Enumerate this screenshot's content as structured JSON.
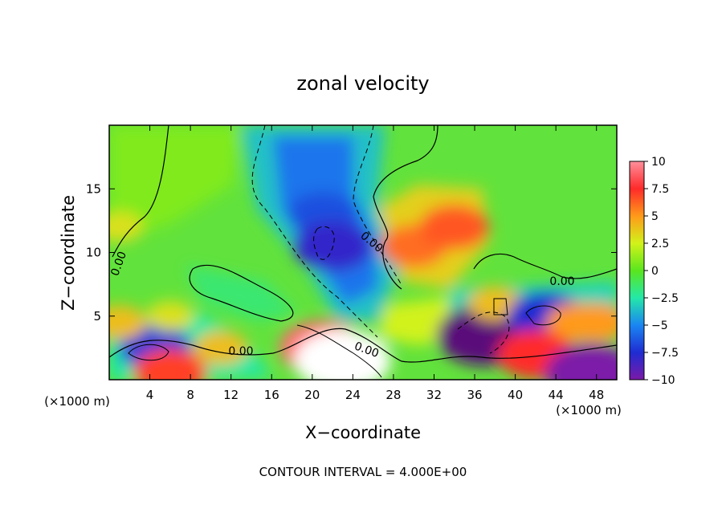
{
  "chart_data": {
    "type": "heatmap",
    "title": "zonal velocity",
    "xlabel": "X−coordinate",
    "ylabel": "Z−coordinate",
    "x_unit": "(×1000 m)",
    "x_unit_right": "(×1000 m)",
    "footer": "CONTOUR INTERVAL = 4.000E+00",
    "xlim": [
      0,
      50
    ],
    "ylim": [
      0,
      20
    ],
    "x_ticks": [
      4,
      8,
      12,
      16,
      20,
      24,
      28,
      32,
      36,
      40,
      44,
      48
    ],
    "x_tick_labels": [
      "4",
      "8",
      "12",
      "16",
      "20",
      "24",
      "28",
      "32",
      "36",
      "40",
      "44",
      "48"
    ],
    "y_ticks": [
      5,
      10,
      15
    ],
    "y_tick_labels": [
      "5",
      "10",
      "15"
    ],
    "contour_labels": [
      "0.00",
      "0.00",
      "0.00",
      "0.00",
      "0.00"
    ],
    "colorbar": {
      "min": -10,
      "max": 10,
      "ticks": [
        10,
        7.5,
        5,
        2.5,
        0,
        -2.5,
        -5,
        -7.5,
        -10
      ],
      "tick_labels": [
        "10",
        "7.5",
        "5",
        "2.5",
        "0",
        "−2.5",
        "−5",
        "−7.5",
        "−10"
      ],
      "colors": [
        "#ff8f9c",
        "#ff2a2a",
        "#ff9a1a",
        "#d2f21a",
        "#5ae61e",
        "#24e8a8",
        "#1a86f2",
        "#1f2cd2",
        "#7b1aa8"
      ]
    },
    "features": [
      {
        "x": 21,
        "z": 13,
        "value": -6.5
      },
      {
        "x": 22,
        "z": 10.5,
        "value": -8
      },
      {
        "x": 30,
        "z": 10.5,
        "value": 6
      },
      {
        "x": 34,
        "z": 12,
        "value": 6.5
      },
      {
        "x": 21,
        "z": 2.5,
        "value": 9
      },
      {
        "x": 23,
        "z": 1.5,
        "value": 12
      },
      {
        "x": 37,
        "z": 3.5,
        "value": -11
      },
      {
        "x": 38,
        "z": 6,
        "value": 4
      },
      {
        "x": 43,
        "z": 5,
        "value": -7.5
      },
      {
        "x": 46,
        "z": 4.5,
        "value": 5
      },
      {
        "x": 48,
        "z": 4.5,
        "value": 5
      },
      {
        "x": 4.5,
        "z": 2.5,
        "value": -7
      },
      {
        "x": 1,
        "z": 4.5,
        "value": 4
      },
      {
        "x": 6,
        "z": 0.6,
        "value": 7
      },
      {
        "x": 11,
        "z": 2.5,
        "value": 4
      },
      {
        "x": 42,
        "z": 2,
        "value": 7.5
      },
      {
        "x": 47.5,
        "z": 0.5,
        "value": -10
      },
      {
        "x": 6,
        "z": 5,
        "value": 3
      },
      {
        "x": 1,
        "z": 12,
        "value": 3
      }
    ]
  }
}
